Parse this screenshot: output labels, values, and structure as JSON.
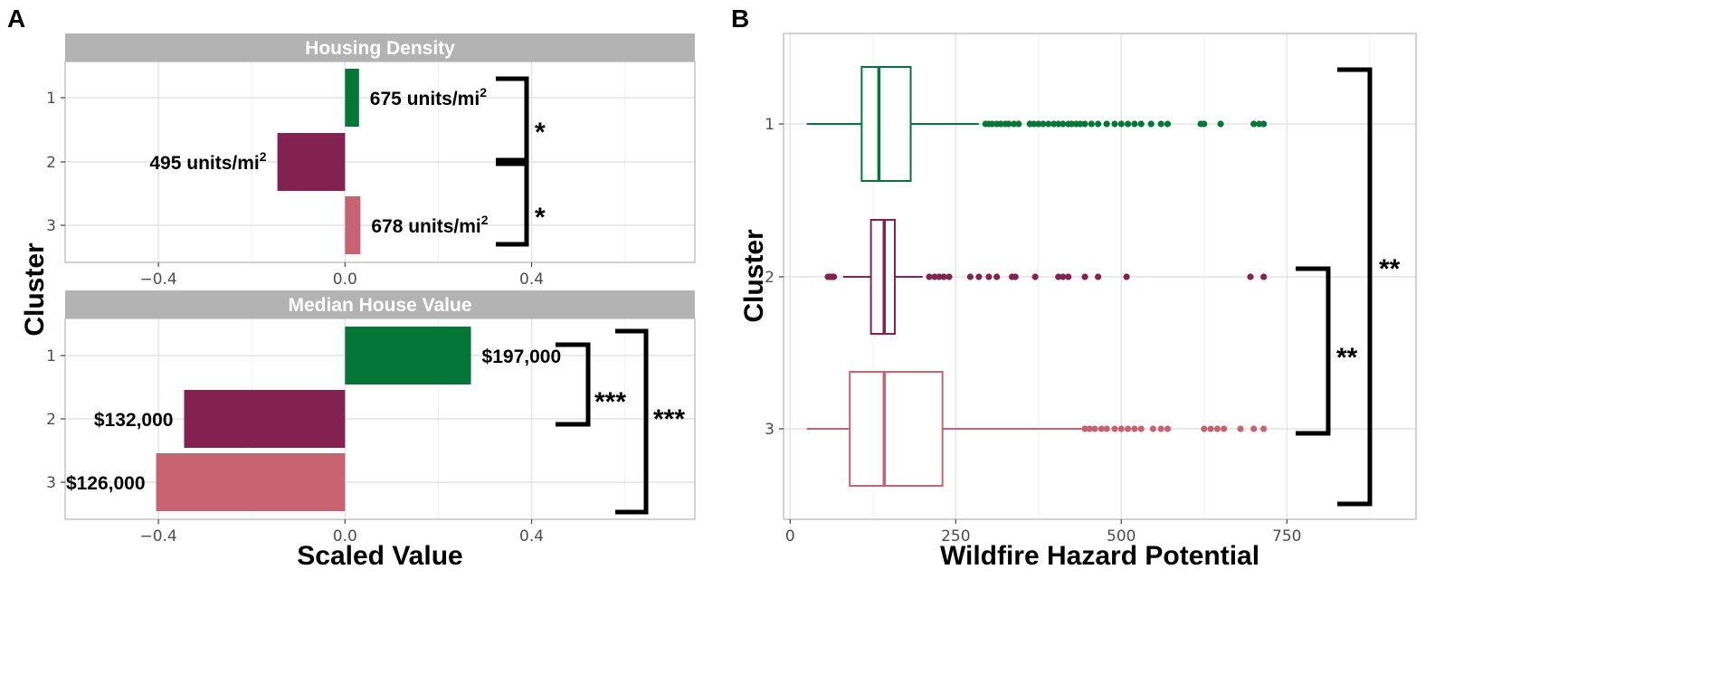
{
  "chart_data": [
    {
      "panel": "A",
      "type": "bar",
      "orientation": "horizontal",
      "ylabel": "Cluster",
      "xlabel": "Scaled Value",
      "xlim": [
        -0.6,
        0.75
      ],
      "xticks": [
        -0.4,
        0.0,
        0.4
      ],
      "xtick_labels": [
        "−0.4",
        "0.0",
        "0.4"
      ],
      "categories": [
        "1",
        "2",
        "3"
      ],
      "colors": [
        "#047638",
        "#832150",
        "#c76370"
      ],
      "facets": [
        {
          "title": "Housing Density",
          "values": [
            0.03,
            -0.145,
            0.033
          ],
          "labels": [
            "675 units/mi",
            "495 units/mi",
            "678 units/mi"
          ],
          "label_superscripts": [
            "2",
            "2",
            "2"
          ],
          "significance": [
            {
              "from": "1",
              "to": "2",
              "stars": "*"
            },
            {
              "from": "2",
              "to": "3",
              "stars": "*"
            }
          ]
        },
        {
          "title": "Median House Value",
          "values": [
            0.27,
            -0.345,
            -0.405
          ],
          "labels": [
            "$197,000",
            "$132,000",
            "$126,000"
          ],
          "significance": [
            {
              "from": "1",
              "to": "2",
              "stars": "***"
            },
            {
              "from": "1",
              "to": "3",
              "stars": "***"
            }
          ]
        }
      ]
    },
    {
      "panel": "B",
      "type": "boxplot",
      "orientation": "horizontal",
      "ylabel": "Cluster",
      "xlabel": "Wildfire Hazard Potential",
      "xlim": [
        -10,
        945
      ],
      "xticks": [
        0,
        250,
        500,
        750
      ],
      "xtick_labels": [
        "0",
        "250",
        "500",
        "750"
      ],
      "categories": [
        "1",
        "2",
        "3"
      ],
      "colors": [
        "#047638",
        "#832150",
        "#c76370"
      ],
      "boxes": [
        {
          "cluster": "1",
          "whisker_low": 25,
          "q1": 108,
          "median": 134,
          "q3": 182,
          "whisker_high": 285,
          "outliers": [
            295,
            300,
            305,
            312,
            318,
            325,
            330,
            338,
            345,
            362,
            368,
            375,
            382,
            390,
            398,
            405,
            412,
            420,
            425,
            432,
            438,
            445,
            455,
            465,
            478,
            490,
            500,
            510,
            520,
            530,
            545,
            560,
            570,
            620,
            625,
            650,
            700,
            708,
            715
          ]
        },
        {
          "cluster": "2",
          "whisker_low": 80,
          "q1": 122,
          "median": 142,
          "q3": 158,
          "whisker_high": 200,
          "outliers": [
            57,
            60,
            63,
            66,
            210,
            218,
            225,
            232,
            240,
            272,
            285,
            300,
            312,
            335,
            340,
            370,
            405,
            412,
            420,
            445,
            465,
            508,
            695,
            715
          ]
        },
        {
          "cluster": "3",
          "whisker_low": 25,
          "q1": 90,
          "median": 142,
          "q3": 230,
          "whisker_high": 440,
          "outliers": [
            445,
            452,
            460,
            470,
            478,
            490,
            500,
            510,
            520,
            530,
            548,
            560,
            570,
            625,
            635,
            645,
            655,
            680,
            700,
            715
          ]
        }
      ],
      "significance": [
        {
          "from": "2",
          "to": "3",
          "stars": "**"
        },
        {
          "from": "1",
          "to": "3",
          "stars": "**"
        }
      ]
    }
  ]
}
